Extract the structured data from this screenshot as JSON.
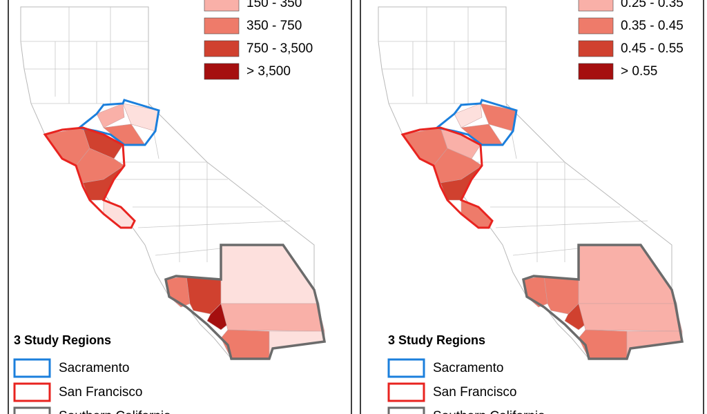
{
  "panels": [
    {
      "legend": [
        "150 - 350",
        "350 - 750",
        "750 - 3,500",
        "> 3,500"
      ],
      "study_regions": {
        "title": "3 Study Regions",
        "items": [
          "Sacramento",
          "San Francisco",
          "Southern California"
        ]
      }
    },
    {
      "legend": [
        "0.25 - 0.35",
        "0.35 - 0.45",
        "0.45 - 0.55",
        "> 0.55"
      ],
      "study_regions": {
        "title": "3 Study Regions",
        "items": [
          "Sacramento",
          "San Francisco",
          "Southern California"
        ]
      }
    }
  ]
}
